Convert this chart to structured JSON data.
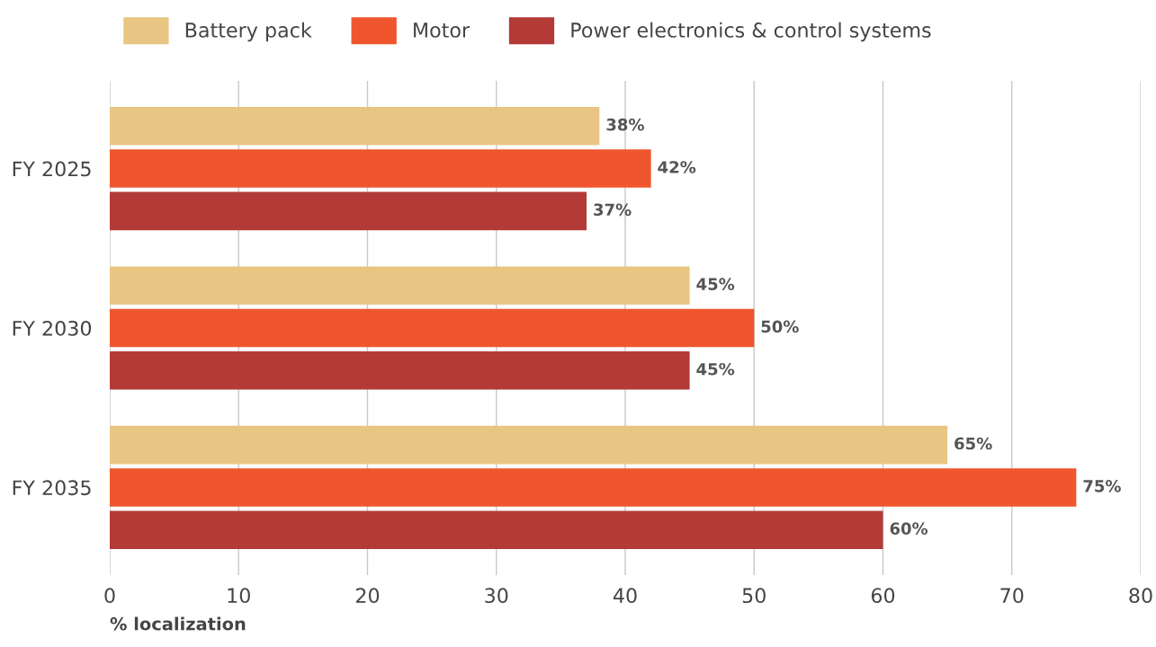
{
  "chart_data": {
    "type": "bar",
    "orientation": "horizontal",
    "categories": [
      "FY 2025",
      "FY 2030",
      "FY 2035"
    ],
    "series": [
      {
        "name": "Battery pack",
        "color": "#e8c583",
        "values": [
          38,
          45,
          65
        ],
        "value_labels": [
          "38%",
          "45%",
          "65%"
        ]
      },
      {
        "name": "Motor",
        "color": "#ef562d",
        "values": [
          42,
          50,
          75
        ],
        "value_labels": [
          "42%",
          "50%",
          "75%"
        ]
      },
      {
        "name": "Power electronics & control systems",
        "color": "#b33a37",
        "values": [
          37,
          45,
          60
        ],
        "value_labels": [
          "37%",
          "45%",
          "60%"
        ]
      }
    ],
    "xlabel": "% localization",
    "xlim": [
      0,
      80
    ],
    "xticks": [
      0,
      10,
      20,
      30,
      40,
      50,
      60,
      70,
      80
    ],
    "grid": "x",
    "legend": "top"
  }
}
